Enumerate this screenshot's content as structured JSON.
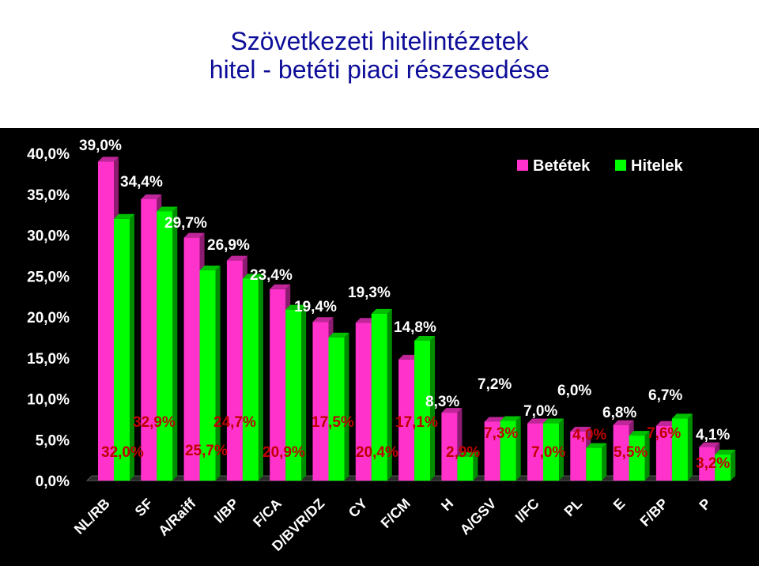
{
  "title_line1": "Szövetkezeti hitelintézetek",
  "title_line2": "hitel - betéti piaci részesedése",
  "chart_data": {
    "type": "bar",
    "categories": [
      "NL/RB",
      "SF",
      "A/Raiff",
      "I/BP",
      "F/CA",
      "D/BVR/DZ",
      "CY",
      "F/CM",
      "H",
      "A/GSV",
      "I/FC",
      "PL",
      "E",
      "F/BP",
      "P"
    ],
    "series": [
      {
        "name": "Betétek",
        "color": "#ff33cc",
        "values": [
          39.0,
          34.4,
          29.7,
          26.9,
          23.4,
          19.4,
          19.3,
          14.8,
          8.3,
          7.2,
          7.0,
          6.0,
          6.8,
          6.7,
          4.1
        ]
      },
      {
        "name": "Hitelek",
        "color": "#00ff00",
        "values": [
          32.0,
          32.9,
          25.7,
          24.7,
          20.9,
          17.5,
          20.4,
          17.1,
          2.9,
          7.3,
          7.0,
          4.0,
          5.5,
          7.6,
          3.2
        ]
      }
    ],
    "ylim": [
      0,
      40
    ],
    "yticks": [
      "0,0%",
      "5,0%",
      "10,0%",
      "15,0%",
      "20,0%",
      "25,0%",
      "30,0%",
      "35,0%",
      "40,0%"
    ],
    "legend_position": "top-right",
    "grid": false,
    "annotations": [
      {
        "text": "39,0%",
        "color": "#ffffff"
      },
      {
        "text": "34,4%",
        "color": "#ffffff"
      },
      {
        "text": "29,7%",
        "color": "#ffffff"
      },
      {
        "text": "26,9%",
        "color": "#ffffff"
      },
      {
        "text": "23,4%",
        "color": "#ffffff"
      },
      {
        "text": "19,4%",
        "color": "#ffffff"
      },
      {
        "text": "19,3%",
        "color": "#ffffff"
      },
      {
        "text": "14,8%",
        "color": "#ffffff"
      },
      {
        "text": "8,3%",
        "color": "#ffffff"
      },
      {
        "text": "7,2%",
        "color": "#ffffff"
      },
      {
        "text": "7,0%",
        "color": "#ffffff"
      },
      {
        "text": "6,0%",
        "color": "#ffffff"
      },
      {
        "text": "6,8%",
        "color": "#ffffff"
      },
      {
        "text": "6,7%",
        "color": "#ffffff"
      },
      {
        "text": "4,1%",
        "color": "#ffffff"
      },
      {
        "text": "32,0%",
        "color": "#c00000"
      },
      {
        "text": "32,9%",
        "color": "#c00000"
      },
      {
        "text": "25,7%",
        "color": "#c00000"
      },
      {
        "text": "24,7%",
        "color": "#c00000"
      },
      {
        "text": "20,9%",
        "color": "#c00000"
      },
      {
        "text": "17,5%",
        "color": "#c00000"
      },
      {
        "text": "20,4%",
        "color": "#c00000"
      },
      {
        "text": "17,1%",
        "color": "#c00000"
      },
      {
        "text": "2,9%",
        "color": "#c00000"
      },
      {
        "text": "7,3%",
        "color": "#c00000"
      },
      {
        "text": "7,0%",
        "color": "#c00000"
      },
      {
        "text": "4,0%",
        "color": "#c00000"
      },
      {
        "text": "5,5%",
        "color": "#c00000"
      },
      {
        "text": "7,6%",
        "color": "#c00000"
      },
      {
        "text": "3,2%",
        "color": "#c00000"
      }
    ]
  }
}
